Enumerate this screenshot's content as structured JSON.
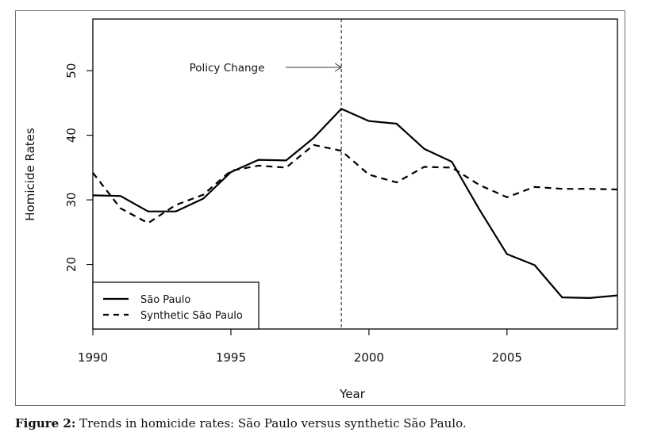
{
  "chart_data": {
    "type": "line",
    "xlabel": "Year",
    "ylabel": "Homicide Rates",
    "xlim": [
      1990,
      2009
    ],
    "ylim": [
      10,
      58
    ],
    "x_ticks": [
      1990,
      1995,
      2000,
      2005
    ],
    "y_ticks": [
      20,
      30,
      40,
      50
    ],
    "grid": false,
    "legend_position": "bottom-left",
    "x": [
      1990,
      1991,
      1992,
      1993,
      1994,
      1995,
      1996,
      1997,
      1998,
      1999,
      2000,
      2001,
      2002,
      2003,
      2004,
      2005,
      2006,
      2007,
      2008,
      2009
    ],
    "series": [
      {
        "name": "São Paulo",
        "style": "solid",
        "color": "#000000",
        "values": [
          30.7,
          30.6,
          28.2,
          28.2,
          30.2,
          34.3,
          36.2,
          36.1,
          39.6,
          44.1,
          42.2,
          41.8,
          37.9,
          35.9,
          28.5,
          21.6,
          19.9,
          14.9,
          14.8,
          15.2
        ]
      },
      {
        "name": "Synthetic São Paulo",
        "style": "dashed",
        "color": "#000000",
        "values": [
          34.2,
          28.7,
          26.4,
          29.2,
          30.8,
          34.5,
          35.3,
          35.0,
          38.5,
          37.6,
          33.9,
          32.7,
          35.1,
          35.0,
          32.3,
          30.4,
          32.0,
          31.7,
          31.7,
          31.6
        ]
      }
    ],
    "vertical_line": {
      "x": 1999,
      "style": "dotted"
    },
    "annotation": {
      "text": "Policy Change",
      "arrow_to_x": 1999
    }
  },
  "caption": {
    "lead": "Figure 2:",
    "text": " Trends in homicide rates: São Paulo versus synthetic São Paulo."
  }
}
